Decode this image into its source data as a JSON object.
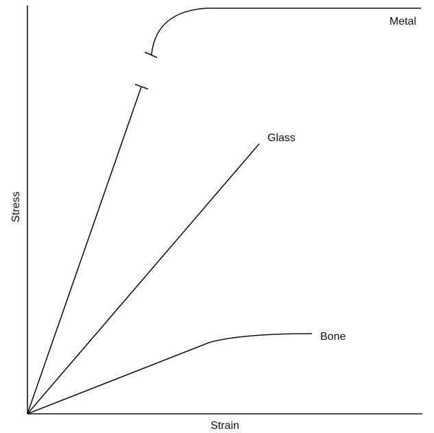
{
  "axes": {
    "x_label": "Strain",
    "y_label": "Stress"
  },
  "curves": [
    {
      "label": "Metal"
    },
    {
      "label": "Glass"
    },
    {
      "label": "Bone"
    }
  ]
}
